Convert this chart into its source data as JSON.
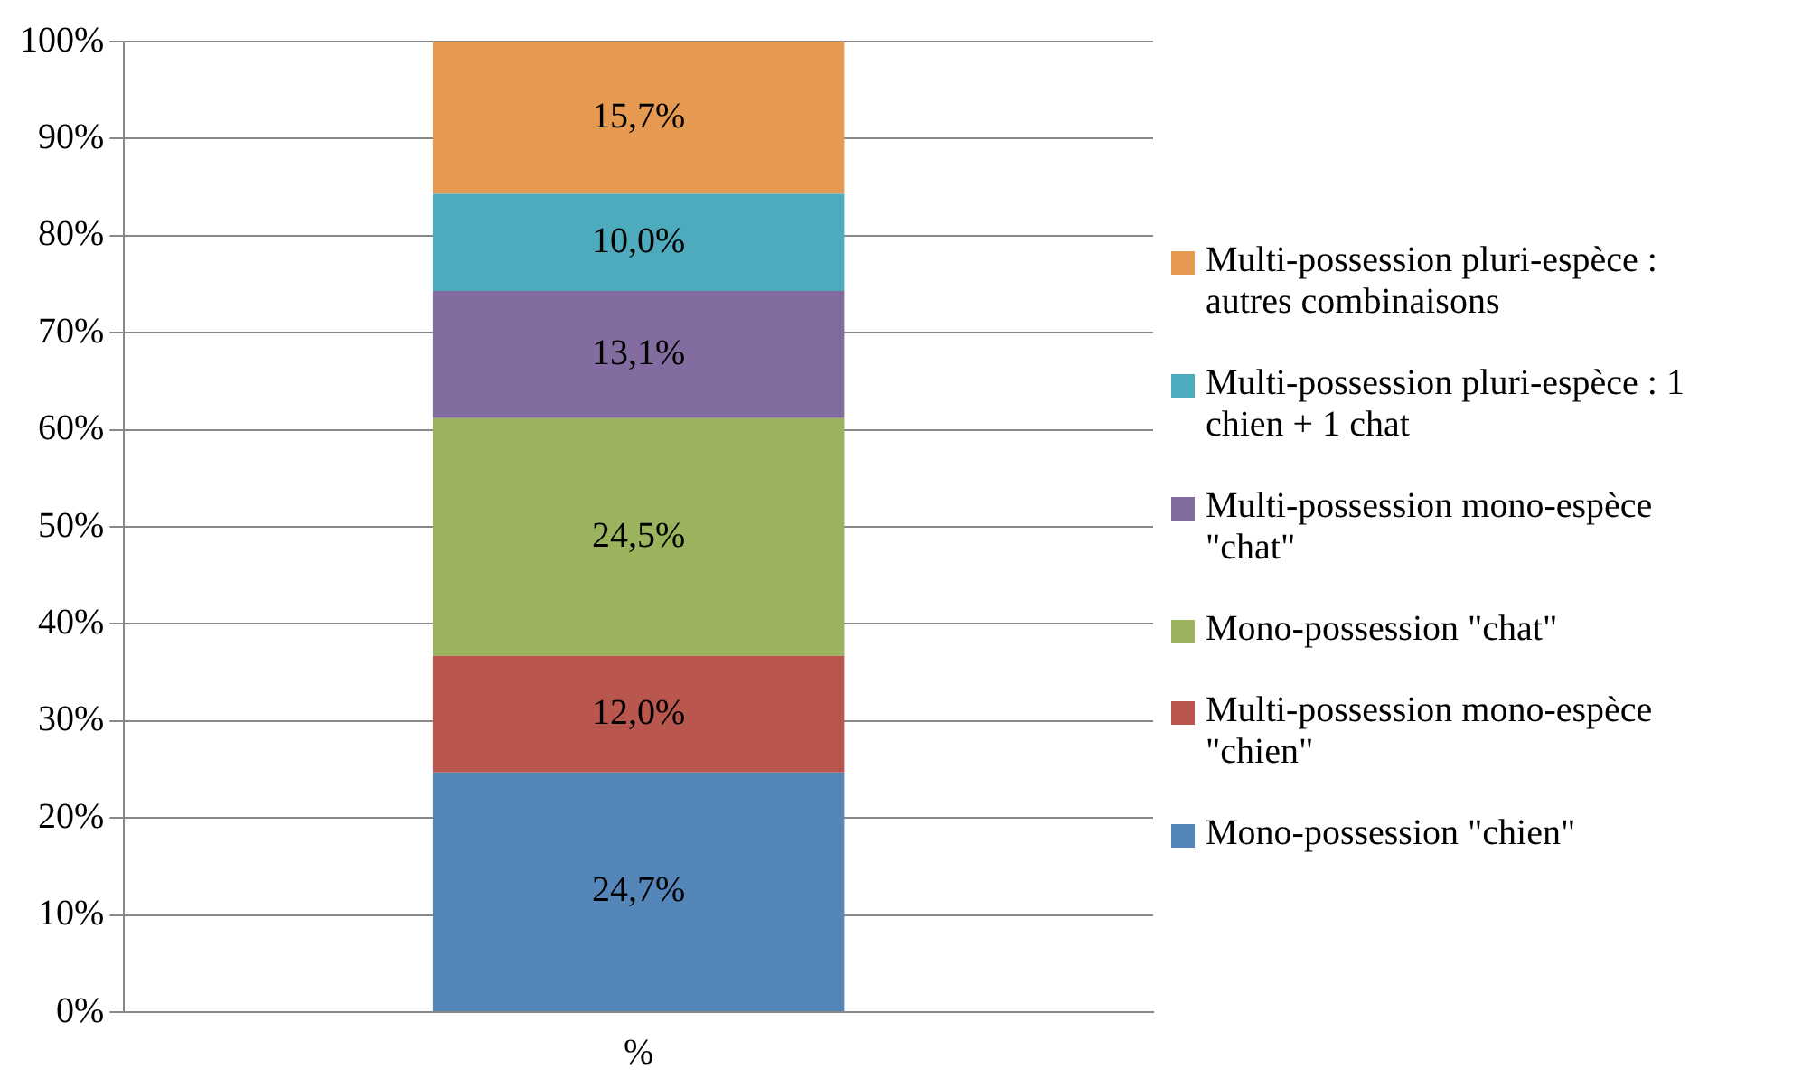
{
  "chart_data": {
    "type": "bar",
    "stacked": true,
    "categories": [
      "%"
    ],
    "ylim": [
      0,
      100
    ],
    "yticks": [
      {
        "value": 0,
        "label": "0%"
      },
      {
        "value": 10,
        "label": "10%"
      },
      {
        "value": 20,
        "label": "20%"
      },
      {
        "value": 30,
        "label": "30%"
      },
      {
        "value": 40,
        "label": "40%"
      },
      {
        "value": 50,
        "label": "50%"
      },
      {
        "value": 60,
        "label": "60%"
      },
      {
        "value": 70,
        "label": "70%"
      },
      {
        "value": 80,
        "label": "80%"
      },
      {
        "value": 90,
        "label": "90%"
      },
      {
        "value": 100,
        "label": "100%"
      }
    ],
    "grid": "y",
    "legend": "right",
    "series": [
      {
        "name": "Mono-possession \"chien\"",
        "color": "#5486ba",
        "values": [
          24.7
        ],
        "value_labels": [
          "24,7%"
        ]
      },
      {
        "name": "Multi-possession mono-espèce \"chien\"",
        "color": "#b9574f",
        "values": [
          12.0
        ],
        "value_labels": [
          "12,0%"
        ]
      },
      {
        "name": "Mono-possession \"chat\"",
        "color": "#9bb35c",
        "values": [
          24.5
        ],
        "value_labels": [
          "24,5%"
        ]
      },
      {
        "name": "Multi-possession mono-espèce \"chat\"",
        "color": "#836ca0",
        "values": [
          13.1
        ],
        "value_labels": [
          "13,1%"
        ]
      },
      {
        "name": "Multi-possession pluri-espèce : 1 chien + 1 chat",
        "color": "#4eaabd",
        "values": [
          10.0
        ],
        "value_labels": [
          "10,0%"
        ]
      },
      {
        "name": "Multi-possession pluri-espèce : autres combinaisons",
        "color": "#e69a51",
        "values": [
          15.7
        ],
        "value_labels": [
          "15,7%"
        ]
      }
    ]
  }
}
